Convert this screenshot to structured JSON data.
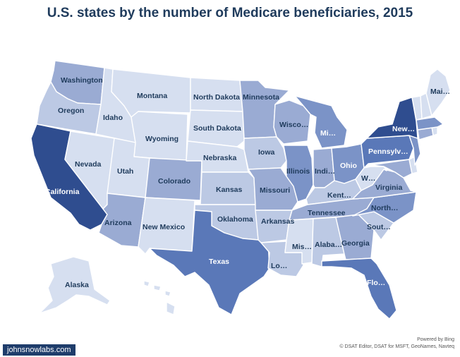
{
  "title": "U.S. states by the number of Medicare beneficiaries, 2015",
  "credits": {
    "powered": "Powered by Bing",
    "sources": "© DSAT Editor, DSAT for MSFT, GeoNames, Navteq"
  },
  "brand": "johnsnowlabs.com",
  "legend": {
    "scale": [
      "#d6dff0",
      "#bcc9e4",
      "#9aabd3",
      "#7b93c7",
      "#5a78b8",
      "#2f4d8f"
    ]
  },
  "labels": {
    "washington": "Washington",
    "oregon": "Oregon",
    "california": "California",
    "nevada": "Nevada",
    "idaho": "Idaho",
    "montana": "Montana",
    "wyoming": "Wyoming",
    "utah": "Utah",
    "arizona": "Arizona",
    "colorado": "Colorado",
    "new_mexico": "New Mexico",
    "north_dakota": "North Dakota",
    "south_dakota": "South Dakota",
    "nebraska": "Nebraska",
    "kansas": "Kansas",
    "oklahoma": "Oklahoma",
    "texas": "Texas",
    "minnesota": "Minnesota",
    "iowa": "Iowa",
    "missouri": "Missouri",
    "arkansas": "Arkansas",
    "louisiana": "Lo…",
    "wisconsin": "Wisco…",
    "illinois": "Illinois",
    "michigan": "Mi…",
    "indiana": "Indi…",
    "ohio": "Ohio",
    "kentucky": "Kent…",
    "tennessee": "Tennessee",
    "mississippi": "Mis…",
    "alabama": "Alaba…",
    "georgia": "Georgia",
    "florida": "Flo…",
    "south_carolina": "Sout…",
    "north_carolina": "North…",
    "virginia": "Virginia",
    "west_virginia": "W…",
    "pennsylvania": "Pennsylv…",
    "new_york": "New…",
    "maine": "Mai…",
    "alaska": "Alaska"
  },
  "states": [
    {
      "id": "WA",
      "tier": 2,
      "value_tier_note": "medium-low"
    },
    {
      "id": "OR",
      "tier": 1
    },
    {
      "id": "CA",
      "tier": 5
    },
    {
      "id": "NV",
      "tier": 0
    },
    {
      "id": "ID",
      "tier": 0
    },
    {
      "id": "MT",
      "tier": 0
    },
    {
      "id": "WY",
      "tier": 0
    },
    {
      "id": "UT",
      "tier": 0
    },
    {
      "id": "AZ",
      "tier": 2
    },
    {
      "id": "CO",
      "tier": 2
    },
    {
      "id": "NM",
      "tier": 0
    },
    {
      "id": "ND",
      "tier": 0
    },
    {
      "id": "SD",
      "tier": 0
    },
    {
      "id": "NE",
      "tier": 0
    },
    {
      "id": "KS",
      "tier": 1
    },
    {
      "id": "OK",
      "tier": 1
    },
    {
      "id": "TX",
      "tier": 4
    },
    {
      "id": "MN",
      "tier": 2
    },
    {
      "id": "IA",
      "tier": 1
    },
    {
      "id": "MO",
      "tier": 2
    },
    {
      "id": "AR",
      "tier": 1
    },
    {
      "id": "LA",
      "tier": 1
    },
    {
      "id": "WI",
      "tier": 2
    },
    {
      "id": "IL",
      "tier": 3
    },
    {
      "id": "MI",
      "tier": 3
    },
    {
      "id": "IN",
      "tier": 2
    },
    {
      "id": "OH",
      "tier": 3
    },
    {
      "id": "KY",
      "tier": 1
    },
    {
      "id": "TN",
      "tier": 2
    },
    {
      "id": "MS",
      "tier": 0
    },
    {
      "id": "AL",
      "tier": 1
    },
    {
      "id": "GA",
      "tier": 2
    },
    {
      "id": "FL",
      "tier": 4
    },
    {
      "id": "SC",
      "tier": 1
    },
    {
      "id": "NC",
      "tier": 3
    },
    {
      "id": "VA",
      "tier": 2
    },
    {
      "id": "WV",
      "tier": 0
    },
    {
      "id": "PA",
      "tier": 4
    },
    {
      "id": "NY",
      "tier": 5
    },
    {
      "id": "NJ",
      "tier": 3
    },
    {
      "id": "MD",
      "tier": 2
    },
    {
      "id": "DE",
      "tier": 0
    },
    {
      "id": "CT",
      "tier": 2
    },
    {
      "id": "RI",
      "tier": 0
    },
    {
      "id": "MA",
      "tier": 3
    },
    {
      "id": "VT",
      "tier": 0
    },
    {
      "id": "NH",
      "tier": 0
    },
    {
      "id": "ME",
      "tier": 0
    },
    {
      "id": "AK",
      "tier": 0
    },
    {
      "id": "HI",
      "tier": 0
    }
  ]
}
